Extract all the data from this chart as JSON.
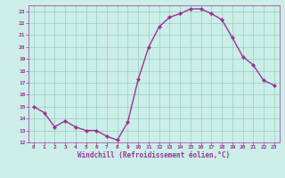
{
  "hours": [
    0,
    1,
    2,
    3,
    4,
    5,
    6,
    7,
    8,
    9,
    10,
    11,
    12,
    13,
    14,
    15,
    16,
    17,
    18,
    19,
    20,
    21,
    22,
    23
  ],
  "values": [
    15.0,
    14.5,
    13.3,
    13.8,
    13.3,
    13.0,
    13.0,
    12.5,
    12.2,
    13.7,
    17.3,
    20.0,
    21.7,
    22.5,
    22.8,
    23.2,
    23.2,
    22.8,
    22.3,
    20.8,
    19.2,
    18.5,
    17.2,
    16.8
  ],
  "line_color": "#993399",
  "marker": "D",
  "marker_size": 2.2,
  "bg_color": "#cceee8",
  "grid_color": "#99ccbb",
  "xlabel": "Windchill (Refroidissement éolien,°C)",
  "tick_color": "#993399",
  "ylim": [
    12,
    23.5
  ],
  "xlim": [
    -0.5,
    23.5
  ],
  "yticks": [
    12,
    13,
    14,
    15,
    16,
    17,
    18,
    19,
    20,
    21,
    22,
    23
  ],
  "xticks": [
    0,
    1,
    2,
    3,
    4,
    5,
    6,
    7,
    8,
    9,
    10,
    11,
    12,
    13,
    14,
    15,
    16,
    17,
    18,
    19,
    20,
    21,
    22,
    23
  ],
  "linewidth": 1.0
}
